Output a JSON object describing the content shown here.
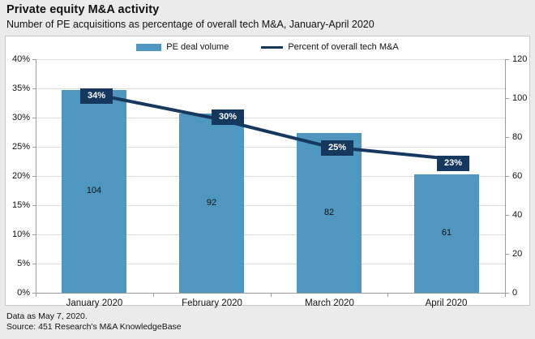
{
  "header": {
    "title": "Private equity M&A activity",
    "subtitle": "Number of PE acquisitions as percentage of overall tech M&A, January-April 2020"
  },
  "legend": {
    "bar_label": "PE deal volume",
    "line_label": "Percent of overall tech M&A"
  },
  "footer": {
    "note": "Data as May 7, 2020.",
    "source": "Source: 451 Research's M&A KnowledgeBase"
  },
  "colors": {
    "bar": "#4f96c0",
    "line": "#16385f",
    "point_label_background": "#16385f",
    "point_label_text": "#ffffff",
    "panel_background": "#ffffff",
    "page_background": "#ebebeb",
    "gridline": "#dcdcdc",
    "axis": "#9b9b9b",
    "text": "#111111"
  },
  "chart_data": {
    "type": "bar",
    "subtype": "combo bar+line with dual y-axes",
    "title": "Private equity M&A activity",
    "subtitle": "Number of PE acquisitions as percentage of overall tech M&A, January-April 2020",
    "categories": [
      "January 2020",
      "February 2020",
      "March 2020",
      "April 2020"
    ],
    "series": [
      {
        "name": "PE deal volume",
        "type": "bar",
        "axis": "right",
        "values": [
          104,
          92,
          82,
          61
        ]
      },
      {
        "name": "Percent of overall tech M&A",
        "type": "line",
        "axis": "left",
        "values": [
          34,
          30,
          25,
          23
        ],
        "point_labels": [
          "34%",
          "30%",
          "25%",
          "23%"
        ]
      }
    ],
    "left_axis": {
      "min": 0,
      "max": 40,
      "step": 5,
      "format": "percent",
      "tick_labels": [
        "0%",
        "5%",
        "10%",
        "15%",
        "20%",
        "25%",
        "30%",
        "35%",
        "40%"
      ]
    },
    "right_axis": {
      "min": 0,
      "max": 120,
      "step": 20,
      "tick_labels": [
        "0",
        "20",
        "40",
        "60",
        "80",
        "100",
        "120"
      ]
    },
    "grid": "horizontal only",
    "legend_position": "top center"
  }
}
